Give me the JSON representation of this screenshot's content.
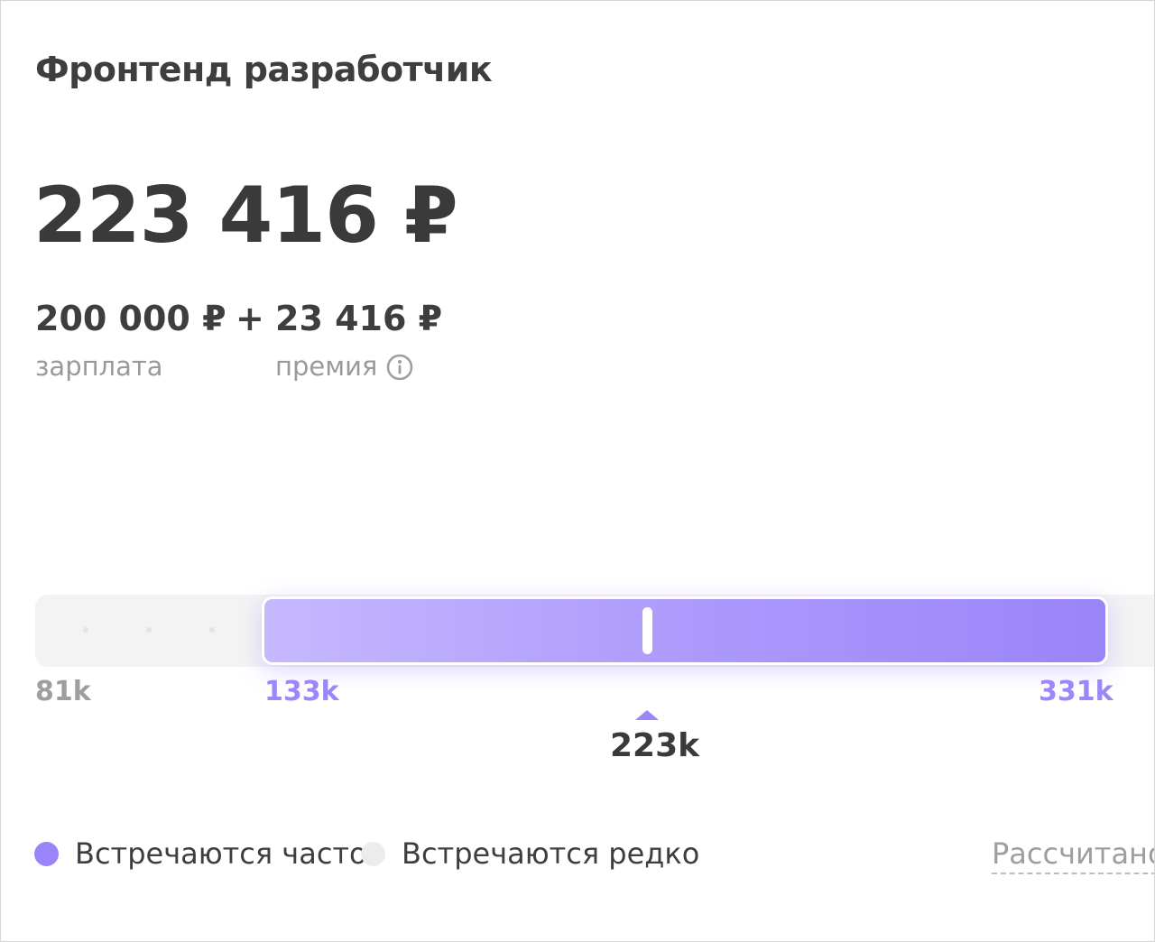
{
  "job": {
    "title": "Фронтенд разработчик"
  },
  "pay": {
    "total": "223 416 ₽",
    "salary_value": "200 000 ₽",
    "plus_sign": "+",
    "bonus_value": "23 416 ₽",
    "salary_caption": "зарплата",
    "bonus_caption": "премия"
  },
  "range": {
    "min_label": "81k",
    "low_label": "133k",
    "high_label": "331k",
    "current_label": "223k",
    "min": 81,
    "low": 133,
    "high": 331,
    "current": 223
  },
  "legend": {
    "often_label": "Встречаются часто",
    "rare_label": "Встречаются редко",
    "calculated_link": "Рассчитано"
  },
  "colors": {
    "accent": "#9a84f9",
    "accent_light": "#c6b8ff",
    "rare": "#ececec",
    "text": "#3e3e3e",
    "muted": "#9e9e9e"
  },
  "icons": {
    "bonus_info": "info-icon"
  }
}
